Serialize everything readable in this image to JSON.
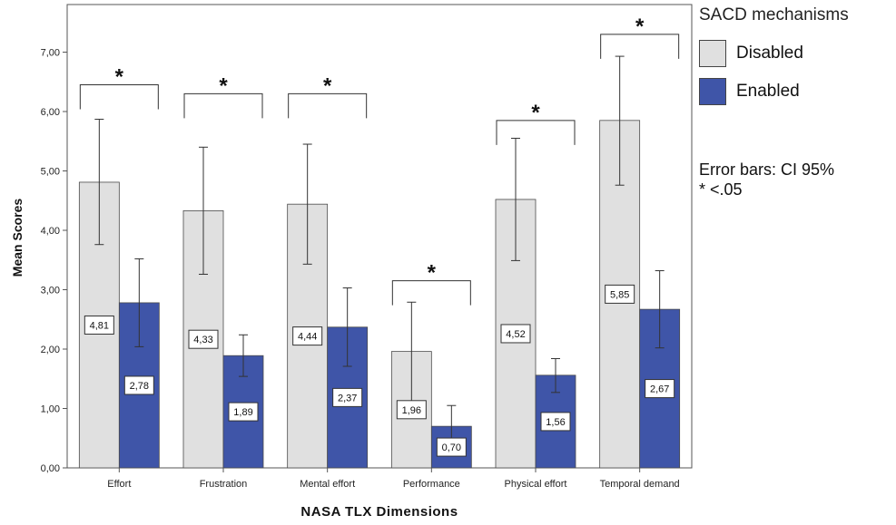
{
  "chart_data": {
    "type": "bar",
    "xlabel": "NASA TLX Dimensions",
    "ylabel": "Mean Scores",
    "ylim": [
      0,
      8
    ],
    "yticks": [
      "0,00",
      "1,00",
      "2,00",
      "3,00",
      "4,00",
      "5,00",
      "6,00",
      "7,00"
    ],
    "grid": false,
    "legend_position": "right",
    "categories": [
      "Effort",
      "Frustration",
      "Mental effort",
      "Performance",
      "Physical effort",
      "Temporal demand"
    ],
    "series": [
      {
        "name": "Disabled",
        "color": "#e0e0e0",
        "values": [
          4.81,
          4.33,
          4.44,
          1.96,
          4.52,
          5.85
        ],
        "labels": [
          "4,81",
          "4,33",
          "4,44",
          "1,96",
          "4,52",
          "5,85"
        ],
        "ci_low": [
          3.76,
          3.26,
          3.43,
          1.12,
          3.49,
          4.76
        ],
        "ci_high": [
          5.87,
          5.4,
          5.45,
          2.79,
          5.55,
          6.93
        ]
      },
      {
        "name": "Enabled",
        "color": "#3f55a8",
        "values": [
          2.78,
          1.89,
          2.37,
          0.7,
          1.56,
          2.67
        ],
        "labels": [
          "2,78",
          "1,89",
          "2,37",
          "0,70",
          "1,56",
          "2,67"
        ],
        "ci_low": [
          2.04,
          1.54,
          1.71,
          0.35,
          1.27,
          2.02
        ],
        "ci_high": [
          3.52,
          2.24,
          3.03,
          1.05,
          1.84,
          3.32
        ]
      }
    ],
    "significance": [
      {
        "category": "Effort",
        "marker": "*",
        "level": 6.45
      },
      {
        "category": "Frustration",
        "marker": "*",
        "level": 6.3
      },
      {
        "category": "Mental effort",
        "marker": "*",
        "level": 6.3
      },
      {
        "category": "Performance",
        "marker": "*",
        "level": 3.15
      },
      {
        "category": "Physical effort",
        "marker": "*",
        "level": 5.85
      },
      {
        "category": "Temporal demand",
        "marker": "*",
        "level": 7.3
      }
    ]
  },
  "legend": {
    "title": "SACD mechanisms",
    "items": [
      {
        "label": "Disabled",
        "color": "#e0e0e0"
      },
      {
        "label": "Enabled",
        "color": "#3f55a8"
      }
    ]
  },
  "notes": {
    "error_bars": "Error bars: CI 95%",
    "significance": "* <.05"
  }
}
